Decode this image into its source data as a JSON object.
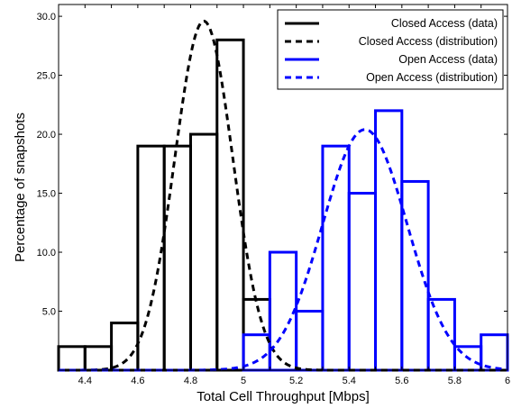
{
  "chart_data": {
    "type": "bar",
    "xlabel": "Total Cell Throughput [Mbps]",
    "ylabel": "Percentage of snapshots",
    "xlim": [
      4.3,
      6.0
    ],
    "ylim": [
      0,
      31
    ],
    "xticks": [
      4.4,
      4.5,
      4.6,
      4.7,
      4.8,
      4.9,
      5.0,
      5.1,
      5.2,
      5.3,
      5.4,
      5.5,
      5.6,
      5.7,
      5.8,
      5.9,
      6.0
    ],
    "xtick_labels": [
      "4.4",
      "",
      "4.6",
      "",
      "4.8",
      "",
      "5",
      "",
      "5.2",
      "",
      "5.4",
      "",
      "5.6",
      "",
      "5.8",
      "",
      "6"
    ],
    "yticks": [
      5,
      10,
      15,
      20,
      25,
      30
    ],
    "ytick_labels": [
      "5.0",
      "10.0",
      "15.0",
      "20.0",
      "25.0",
      "30.0"
    ],
    "legend_position": "top-right",
    "series": [
      {
        "name": "Closed Access (data)",
        "kind": "histogram",
        "color": "#000000",
        "bin_width": 0.1,
        "bins": [
          {
            "x": 4.35,
            "value": 2
          },
          {
            "x": 4.45,
            "value": 2
          },
          {
            "x": 4.55,
            "value": 4
          },
          {
            "x": 4.65,
            "value": 19
          },
          {
            "x": 4.75,
            "value": 19
          },
          {
            "x": 4.85,
            "value": 20
          },
          {
            "x": 4.95,
            "value": 28
          },
          {
            "x": 5.05,
            "value": 6
          }
        ]
      },
      {
        "name": "Closed Access (distribution)",
        "kind": "normal-curve",
        "color": "#000000",
        "mean": 4.85,
        "sd": 0.11,
        "peak": 29.6
      },
      {
        "name": "Open Access (data)",
        "kind": "histogram",
        "color": "#0000ff",
        "bin_width": 0.1,
        "bins": [
          {
            "x": 5.05,
            "value": 3
          },
          {
            "x": 5.15,
            "value": 10
          },
          {
            "x": 5.25,
            "value": 5
          },
          {
            "x": 5.35,
            "value": 19
          },
          {
            "x": 5.45,
            "value": 15
          },
          {
            "x": 5.55,
            "value": 22
          },
          {
            "x": 5.65,
            "value": 16
          },
          {
            "x": 5.75,
            "value": 6
          },
          {
            "x": 5.85,
            "value": 2
          },
          {
            "x": 5.95,
            "value": 3
          }
        ]
      },
      {
        "name": "Open Access (distribution)",
        "kind": "normal-curve",
        "color": "#0000ff",
        "mean": 5.46,
        "sd": 0.16,
        "peak": 20.4
      }
    ]
  }
}
